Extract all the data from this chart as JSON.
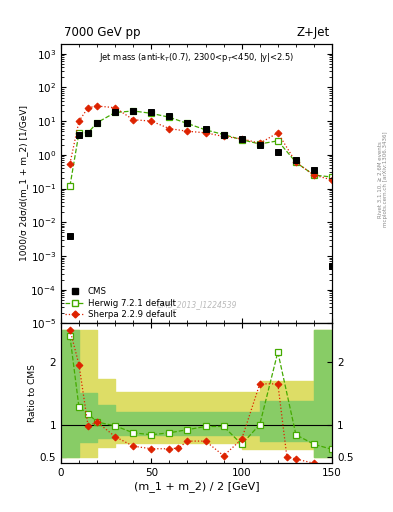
{
  "title_left": "7000 GeV pp",
  "title_right": "Z+Jet",
  "annotation": "Jet mass (anti-k_{T}(0.7), 2300<p_{T}<450, |y|<2.5)",
  "watermark": "CMS_2013_I1224539",
  "right_label_top": "Rivet 3.1.10, ≥ 2.6M events",
  "right_label_bot": "mcplots.cern.ch [arXiv:1306.3436]",
  "xlabel": "(m_1 + m_2) / 2 [GeV]",
  "ylabel_main": "1000/σ 2dσ/d(m_1 + m_2) [1/GeV]",
  "ylabel_ratio": "Ratio to CMS",
  "cms_x": [
    5,
    10,
    15,
    20,
    30,
    40,
    50,
    60,
    70,
    80,
    90,
    100,
    110,
    120,
    130,
    140,
    150
  ],
  "cms_y": [
    0.004,
    4.0,
    4.5,
    9.0,
    18,
    20,
    18,
    14,
    9.0,
    6.0,
    4.0,
    3.0,
    2.0,
    1.2,
    0.7,
    0.35,
    0.0005
  ],
  "herwig_x": [
    5,
    10,
    15,
    20,
    30,
    40,
    50,
    60,
    70,
    80,
    90,
    100,
    110,
    120,
    130,
    140,
    150
  ],
  "herwig_y": [
    0.12,
    4.5,
    4.5,
    9.0,
    18,
    20,
    17,
    13,
    8.5,
    5.5,
    4.0,
    2.8,
    2.1,
    2.6,
    0.6,
    0.25,
    0.22
  ],
  "sherpa_x": [
    5,
    10,
    15,
    20,
    30,
    40,
    50,
    60,
    70,
    80,
    90,
    100,
    110,
    120,
    130,
    140,
    150
  ],
  "sherpa_y": [
    0.55,
    10,
    25,
    28,
    25,
    11,
    10,
    6.0,
    5.0,
    4.5,
    3.5,
    3.0,
    2.2,
    4.5,
    0.6,
    0.25,
    0.18
  ],
  "herwig_ratio_x": [
    5,
    10,
    15,
    20,
    30,
    40,
    50,
    60,
    70,
    80,
    90,
    100,
    110,
    120,
    130,
    140,
    150
  ],
  "herwig_ratio_y": [
    2.4,
    1.28,
    1.18,
    1.05,
    0.99,
    0.88,
    0.85,
    0.88,
    0.93,
    0.98,
    0.98,
    0.7,
    1.01,
    2.15,
    0.85,
    0.7,
    0.62
  ],
  "sherpa_ratio_x": [
    5,
    10,
    15,
    20,
    30,
    40,
    50,
    60,
    65,
    70,
    80,
    90,
    100,
    110,
    120,
    125,
    130,
    140,
    150
  ],
  "sherpa_ratio_y": [
    2.5,
    1.95,
    0.99,
    1.05,
    0.82,
    0.67,
    0.63,
    0.63,
    0.64,
    0.75,
    0.75,
    0.52,
    0.78,
    1.65,
    1.65,
    0.5,
    0.47,
    0.4,
    0.35
  ],
  "band_edges": [
    0,
    10,
    20,
    30,
    40,
    50,
    60,
    70,
    80,
    90,
    100,
    110,
    120,
    130,
    140,
    150
  ],
  "band_green_low": [
    0.5,
    0.74,
    0.8,
    0.84,
    0.84,
    0.84,
    0.84,
    0.84,
    0.84,
    0.84,
    0.84,
    0.75,
    0.75,
    0.75,
    0.5,
    0.5
  ],
  "band_green_high": [
    2.5,
    1.5,
    1.32,
    1.2,
    1.2,
    1.2,
    1.2,
    1.2,
    1.2,
    1.2,
    1.2,
    1.38,
    1.38,
    1.38,
    2.5,
    2.5
  ],
  "band_yellow_low": [
    0.5,
    0.5,
    0.65,
    0.72,
    0.72,
    0.72,
    0.72,
    0.72,
    0.72,
    0.72,
    0.62,
    0.62,
    0.62,
    0.62,
    0.5,
    0.5
  ],
  "band_yellow_high": [
    2.5,
    2.5,
    1.72,
    1.52,
    1.52,
    1.52,
    1.52,
    1.52,
    1.52,
    1.52,
    1.52,
    1.7,
    1.7,
    1.7,
    2.5,
    2.5
  ],
  "cms_color": "#000000",
  "herwig_color": "#44aa00",
  "sherpa_color": "#dd2200",
  "green_band_color": "#88cc66",
  "yellow_band_color": "#dddd66",
  "xlim": [
    0,
    150
  ],
  "ylim_main": [
    1e-05,
    2000
  ],
  "ylim_ratio": [
    0.4,
    2.6
  ],
  "ratio_yticks": [
    0.5,
    1.0,
    2.0
  ],
  "ratio_yticklabels": [
    "0.5",
    "1",
    "2"
  ]
}
